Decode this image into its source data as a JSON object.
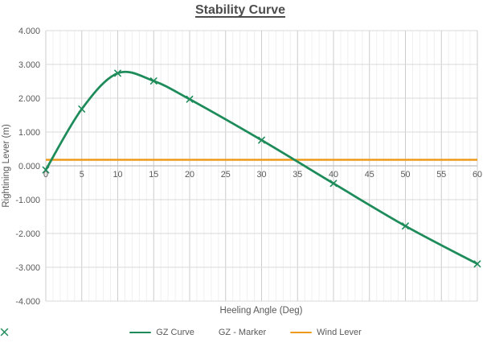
{
  "chart_data": {
    "type": "line",
    "title": "Stability Curve",
    "xlabel": "Heeling Angle (Deg)",
    "ylabel": "Rightining Lever (m)",
    "xlim": [
      0,
      60
    ],
    "ylim": [
      -4,
      4
    ],
    "x_major_step": 5,
    "x_minor_step": 1,
    "y_major_step": 1,
    "x_ticks": [
      "0",
      "5",
      "10",
      "15",
      "20",
      "25",
      "30",
      "35",
      "40",
      "45",
      "50",
      "55",
      "60"
    ],
    "y_ticks": [
      "4.000",
      "3.000",
      "2.000",
      "1.000",
      "0.000",
      "-1.000",
      "-2.000",
      "-3.000",
      "-4.000"
    ],
    "grid": {
      "horizontal_major": true,
      "vertical_major": true,
      "vertical_minor": true
    },
    "legend_position": "bottom",
    "series": [
      {
        "name": "GZ Curve",
        "type": "smooth_line",
        "color": "#1E8C5A",
        "x": [
          0,
          5,
          10,
          15,
          20,
          30,
          40,
          50,
          60
        ],
        "y": [
          -0.12,
          1.68,
          2.74,
          2.51,
          1.97,
          0.76,
          -0.52,
          -1.78,
          -2.9
        ]
      },
      {
        "name": "GZ - Marker",
        "type": "x_marker",
        "color": "#1E8C5A",
        "x": [
          0,
          5,
          10,
          15,
          20,
          30,
          40,
          50,
          60
        ],
        "y": [
          -0.12,
          1.68,
          2.74,
          2.51,
          1.97,
          0.76,
          -0.52,
          -1.78,
          -2.9
        ]
      },
      {
        "name": "Wind Lever",
        "type": "hline",
        "color": "#EE9B1D",
        "value": 0.18
      }
    ],
    "colors": {
      "text": "#595959",
      "title_text": "#4D4D4D",
      "grid_major_h": "#D9D9D9",
      "grid_major_v": "#CCCCCC",
      "grid_minor": "#F0F0F0",
      "axis_line": "#BFBFBF",
      "background": "#FFFFFF"
    }
  }
}
